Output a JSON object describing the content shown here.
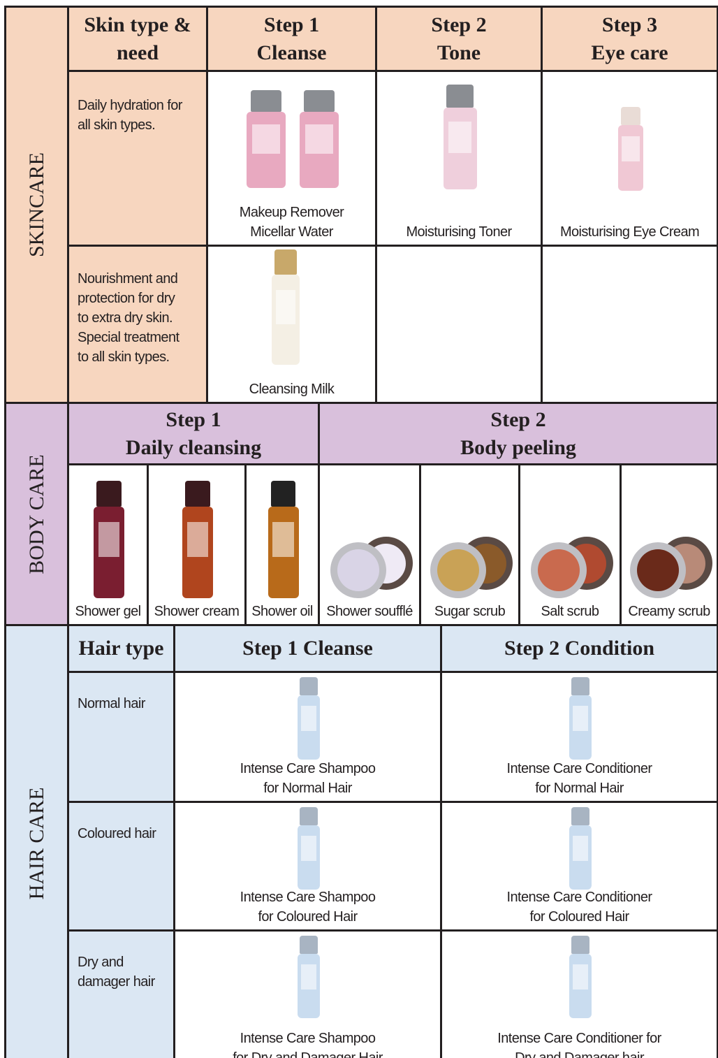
{
  "skincare": {
    "label": "SKINCARE",
    "headers": [
      [
        "Skin type &",
        "need"
      ],
      [
        "Step 1",
        "Cleanse"
      ],
      [
        "Step 2",
        "Tone"
      ],
      [
        "Step 3",
        "Eye care"
      ]
    ],
    "rows": [
      {
        "need": [
          "Daily hydration for",
          "all skin types."
        ],
        "products": [
          [
            "Makeup Remover",
            "Micellar Water"
          ],
          [
            "Moisturising Toner"
          ],
          [
            "Moisturising Eye Cream"
          ]
        ]
      },
      {
        "need": [
          "Nourishment and",
          "protection for dry",
          "to extra dry skin.",
          "Special treatment",
          "to all skin types."
        ],
        "products": [
          [
            "Cleansing Milk"
          ]
        ]
      }
    ]
  },
  "body_care": {
    "label": "BODY CARE",
    "headers": [
      [
        "Step 1",
        "Daily cleansing"
      ],
      [
        "Step 2",
        "Body peeling"
      ]
    ],
    "products": [
      "Shower gel",
      "Shower cream",
      "Shower oil",
      "Shower soufflé",
      "Sugar scrub",
      "Salt scrub",
      "Creamy scrub"
    ]
  },
  "hair_care": {
    "label": "HAIR CARE",
    "headers": [
      "Hair type",
      "Step 1 Cleanse",
      "Step 2 Condition"
    ],
    "rows": [
      {
        "type": [
          "Normal hair"
        ],
        "products": [
          [
            "Intense Care Shampoo",
            "for Normal Hair"
          ],
          [
            "Intense Care Conditioner",
            "for Normal Hair"
          ]
        ]
      },
      {
        "type": [
          "Coloured hair"
        ],
        "products": [
          [
            "Intense Care Shampoo",
            "for Coloured Hair"
          ],
          [
            "Intense Care Conditioner",
            "for Coloured Hair"
          ]
        ]
      },
      {
        "type": [
          "Dry and",
          "damager hair"
        ],
        "products": [
          [
            "Intense Care Shampoo",
            "for Dry and Damager Hair"
          ],
          [
            "Intense Care Conditioner for",
            "Dry and Damager hair"
          ]
        ]
      }
    ]
  }
}
